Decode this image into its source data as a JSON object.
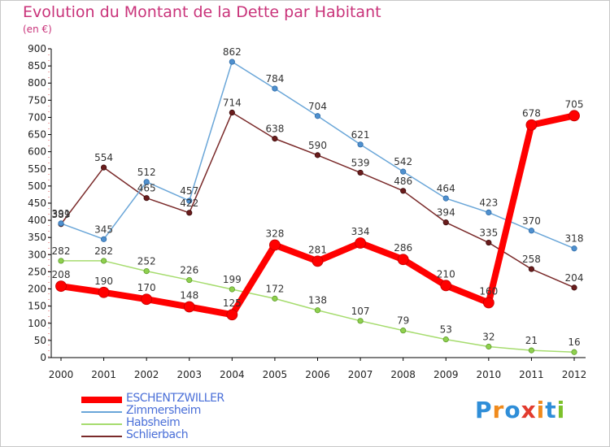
{
  "header": {
    "title": "Evolution du Montant de la Dette par Habitant",
    "subtitle": "(en €)"
  },
  "logo": {
    "text": "Proxiti",
    "letters": [
      "P",
      "r",
      "o",
      "x",
      "i",
      "t",
      "i"
    ],
    "letter_colors": [
      "#2f8ed8",
      "#f08a1c",
      "#2f8ed8",
      "#e23b2e",
      "#f08a1c",
      "#2f8ed8",
      "#7cc12a"
    ]
  },
  "chart_data": {
    "type": "line",
    "x": [
      "2000",
      "2001",
      "2002",
      "2003",
      "2004",
      "2005",
      "2006",
      "2007",
      "2008",
      "2009",
      "2010",
      "2011",
      "2012"
    ],
    "yticks": [
      0,
      50,
      100,
      150,
      200,
      250,
      300,
      350,
      400,
      450,
      500,
      550,
      600,
      650,
      700,
      750,
      800,
      850,
      900
    ],
    "ylim": [
      0,
      900
    ],
    "grid": false,
    "legend_position": "bottom-left",
    "series": [
      {
        "name": "ESCHENTZWILLER",
        "color": "#ff0000",
        "values": [
          208,
          190,
          170,
          148,
          125,
          328,
          281,
          334,
          286,
          210,
          160,
          678,
          705
        ],
        "labels": [
          "208",
          "190",
          "170",
          "148",
          "125",
          "328",
          "281",
          "334",
          "286",
          "210",
          "160",
          "678",
          "705"
        ]
      },
      {
        "name": "Zimmersheim",
        "color": "#6aa6d8",
        "values": [
          391,
          345,
          512,
          457,
          862,
          784,
          704,
          621,
          542,
          464,
          423,
          370,
          318
        ],
        "labels": [
          "391",
          "345",
          "512",
          "457",
          "862",
          "784",
          "704",
          "621",
          "542",
          "464",
          "423",
          "370",
          "318"
        ]
      },
      {
        "name": "Habsheim",
        "color": "#a6dc6e",
        "values": [
          282,
          282,
          252,
          226,
          199,
          172,
          138,
          107,
          79,
          53,
          32,
          21,
          16
        ],
        "labels": [
          "282",
          "282",
          "252",
          "226",
          "199",
          "172",
          "138",
          "107",
          "79",
          "53",
          "32",
          "21",
          "16"
        ]
      },
      {
        "name": "Schlierbach",
        "color": "#7a2a2a",
        "values": [
          389,
          554,
          465,
          422,
          714,
          638,
          590,
          539,
          486,
          394,
          335,
          258,
          204
        ],
        "labels": [
          "389",
          "554",
          "465",
          "422",
          "714",
          "638",
          "590",
          "539",
          "486",
          "394",
          "335",
          "258",
          "204"
        ]
      }
    ]
  }
}
